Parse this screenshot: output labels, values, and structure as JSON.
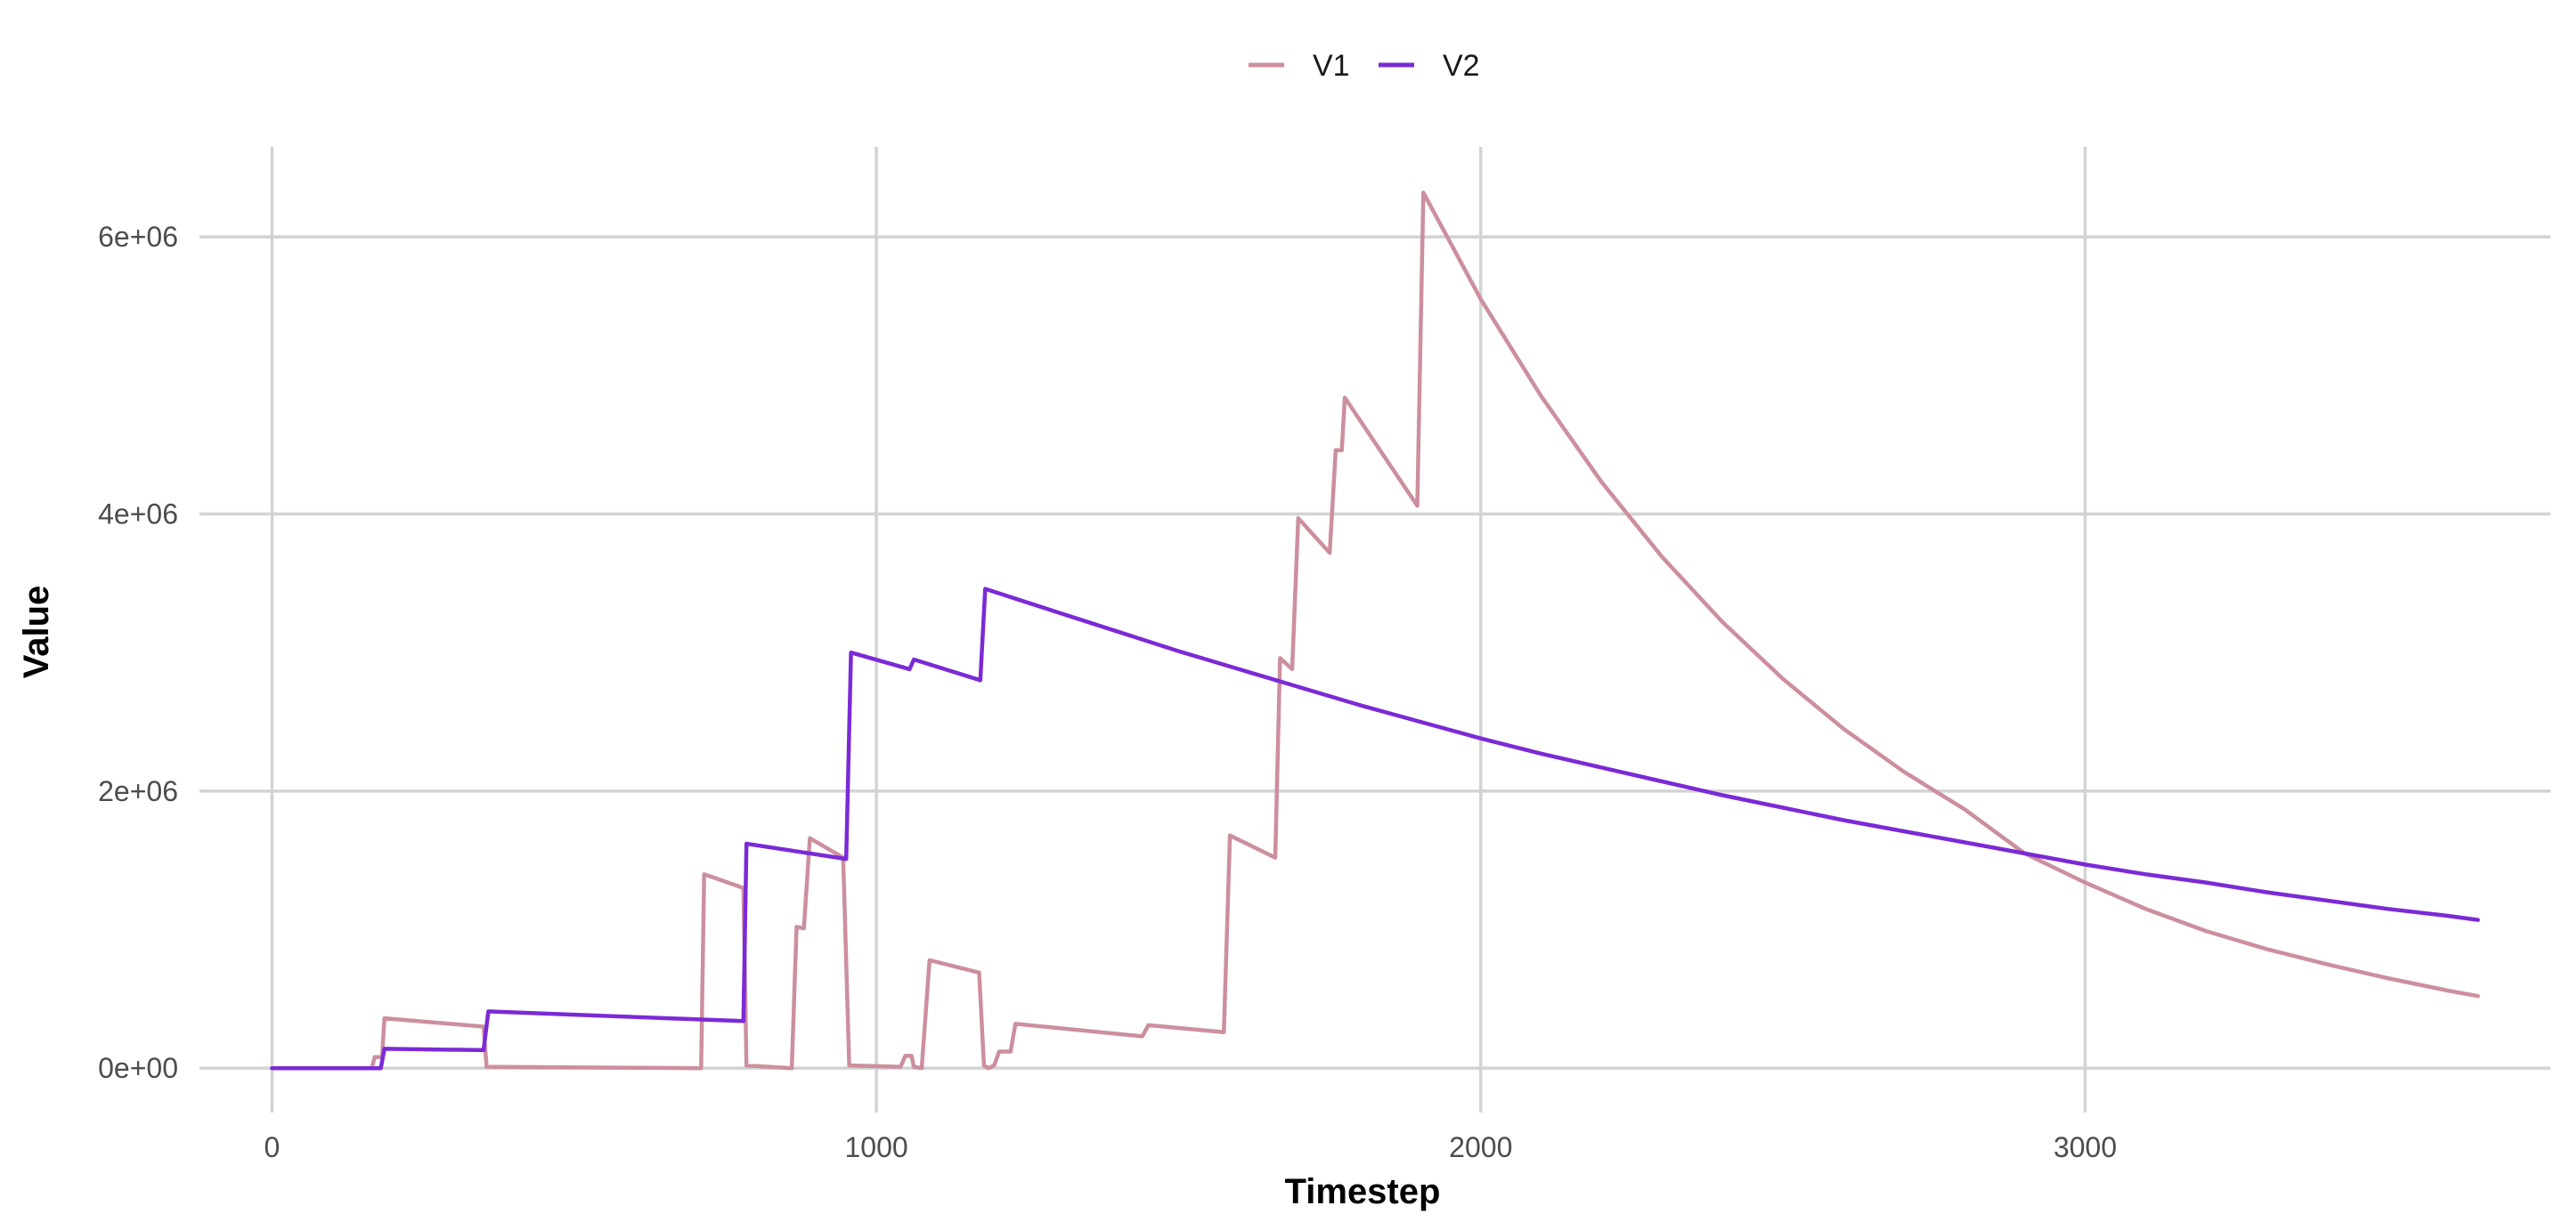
{
  "chart_data": {
    "type": "line",
    "title": "",
    "xlabel": "Timestep",
    "ylabel": "Value",
    "xlim": [
      -120,
      3770
    ],
    "ylim": [
      -320000,
      6650000
    ],
    "x_ticks": [
      0,
      1000,
      2000,
      3000
    ],
    "x_tick_labels": [
      "0",
      "1000",
      "2000",
      "3000"
    ],
    "y_ticks": [
      0,
      2000000,
      4000000,
      6000000
    ],
    "y_tick_labels": [
      "0e+00",
      "2e+06",
      "4e+06",
      "6e+06"
    ],
    "grid": true,
    "legend_position": "top",
    "series": [
      {
        "name": "V1",
        "color": "#cc8f9e",
        "points": [
          [
            0,
            0
          ],
          [
            165,
            0
          ],
          [
            170,
            80000
          ],
          [
            182,
            80000
          ],
          [
            186,
            360000
          ],
          [
            350,
            300000
          ],
          [
            355,
            10000
          ],
          [
            710,
            0
          ],
          [
            715,
            1400000
          ],
          [
            780,
            1300000
          ],
          [
            785,
            20000
          ],
          [
            860,
            0
          ],
          [
            868,
            1020000
          ],
          [
            880,
            1010000
          ],
          [
            890,
            1660000
          ],
          [
            945,
            1520000
          ],
          [
            955,
            20000
          ],
          [
            1040,
            10000
          ],
          [
            1048,
            90000
          ],
          [
            1058,
            90000
          ],
          [
            1062,
            10000
          ],
          [
            1075,
            0
          ],
          [
            1088,
            780000
          ],
          [
            1170,
            690000
          ],
          [
            1178,
            20000
          ],
          [
            1185,
            0
          ],
          [
            1195,
            20000
          ],
          [
            1203,
            120000
          ],
          [
            1222,
            120000
          ],
          [
            1230,
            320000
          ],
          [
            1440,
            230000
          ],
          [
            1450,
            310000
          ],
          [
            1575,
            260000
          ],
          [
            1585,
            1680000
          ],
          [
            1660,
            1520000
          ],
          [
            1668,
            2960000
          ],
          [
            1688,
            2880000
          ],
          [
            1698,
            3970000
          ],
          [
            1750,
            3720000
          ],
          [
            1760,
            4460000
          ],
          [
            1770,
            4460000
          ],
          [
            1775,
            4840000
          ],
          [
            1895,
            4060000
          ],
          [
            1905,
            6320000
          ],
          [
            2000,
            5550000
          ],
          [
            2100,
            4850000
          ],
          [
            2200,
            4230000
          ],
          [
            2300,
            3690000
          ],
          [
            2400,
            3220000
          ],
          [
            2500,
            2810000
          ],
          [
            2600,
            2450000
          ],
          [
            2700,
            2140000
          ],
          [
            2800,
            1870000
          ],
          [
            2900,
            1550000
          ],
          [
            3000,
            1340000
          ],
          [
            3100,
            1150000
          ],
          [
            3200,
            990000
          ],
          [
            3300,
            860000
          ],
          [
            3400,
            750000
          ],
          [
            3500,
            650000
          ],
          [
            3600,
            560000
          ],
          [
            3650,
            520000
          ]
        ]
      },
      {
        "name": "V2",
        "color": "#7b2ad6",
        "points": [
          [
            0,
            0
          ],
          [
            180,
            0
          ],
          [
            186,
            140000
          ],
          [
            350,
            130000
          ],
          [
            358,
            410000
          ],
          [
            780,
            340000
          ],
          [
            785,
            1620000
          ],
          [
            950,
            1510000
          ],
          [
            958,
            3000000
          ],
          [
            1055,
            2880000
          ],
          [
            1062,
            2950000
          ],
          [
            1172,
            2800000
          ],
          [
            1180,
            3460000
          ],
          [
            1300,
            3290000
          ],
          [
            1400,
            3150000
          ],
          [
            1500,
            3010000
          ],
          [
            1600,
            2880000
          ],
          [
            1700,
            2750000
          ],
          [
            1800,
            2620000
          ],
          [
            1900,
            2500000
          ],
          [
            2000,
            2380000
          ],
          [
            2100,
            2270000
          ],
          [
            2200,
            2170000
          ],
          [
            2300,
            2070000
          ],
          [
            2400,
            1970000
          ],
          [
            2500,
            1880000
          ],
          [
            2600,
            1790000
          ],
          [
            2700,
            1710000
          ],
          [
            2800,
            1630000
          ],
          [
            2900,
            1550000
          ],
          [
            3000,
            1470000
          ],
          [
            3100,
            1400000
          ],
          [
            3200,
            1340000
          ],
          [
            3300,
            1270000
          ],
          [
            3400,
            1210000
          ],
          [
            3500,
            1150000
          ],
          [
            3600,
            1100000
          ],
          [
            3650,
            1070000
          ]
        ]
      }
    ]
  }
}
